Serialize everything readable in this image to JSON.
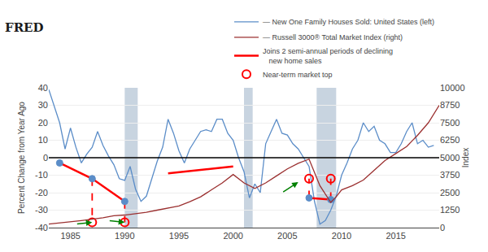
{
  "chart_data": {
    "type": "line",
    "annotations": [
      "FRED"
    ],
    "xlabel": null,
    "ylabel": "Percent Change from Year Ago",
    "y2label": "Index",
    "xlim": [
      1983.0,
      2019.0
    ],
    "xticks": [
      1985,
      1990,
      1995,
      2000,
      2005,
      2010,
      2015
    ],
    "ylim": [
      -40,
      40
    ],
    "yticks": [
      -40,
      -30,
      -20,
      -10,
      0,
      10,
      20,
      30,
      40
    ],
    "y2lim": [
      0,
      10000
    ],
    "y2ticks": [
      0,
      1250,
      2500,
      3750,
      5000,
      6250,
      7500,
      8750,
      10000
    ],
    "grid": "y",
    "legend": "upper right",
    "shaded_regions": [
      [
        1990.0,
        1991.2
      ],
      [
        2001.0,
        2001.8
      ],
      [
        2007.7,
        2009.5
      ]
    ],
    "shaded_color": "#c8d4e0",
    "hlines": [
      {
        "value": 0,
        "color": "#000000"
      }
    ],
    "arrows": [
      {
        "x_start": 1985.5,
        "y_start": -38,
        "x_end": 1987.0,
        "y_end": -37,
        "color": "green"
      },
      {
        "x_start": 1988.5,
        "y_start": -36,
        "x_end": 1990.0,
        "y_end": -37,
        "color": "green"
      },
      {
        "x_start": 2004.5,
        "y_start": -20,
        "x_end": 2006.0,
        "y_end": -14,
        "color": "green"
      }
    ],
    "series": [
      {
        "name": "— New One Family Houses Sold: United States (left)",
        "type": "line",
        "color": "#5b8dc8",
        "line_style": "solid",
        "x": [
          1983.0,
          1983.5,
          1984.0,
          1984.5,
          1985.0,
          1985.5,
          1986.0,
          1986.5,
          1987.0,
          1987.5,
          1988.0,
          1988.5,
          1989.0,
          1989.5,
          1990.0,
          1990.5,
          1991.0,
          1991.5,
          1992.0,
          1992.5,
          1993.0,
          1993.5,
          1994.0,
          1994.5,
          1995.0,
          1995.5,
          1996.0,
          1996.5,
          1997.0,
          1997.5,
          1998.0,
          1998.5,
          1999.0,
          1999.5,
          2000.0,
          2000.5,
          2001.0,
          2001.5,
          2002.0,
          2002.5,
          2003.0,
          2003.5,
          2004.0,
          2004.5,
          2005.0,
          2005.5,
          2006.0,
          2006.5,
          2007.0,
          2007.5,
          2008.0,
          2008.5,
          2009.0,
          2009.5,
          2010.0,
          2010.5,
          2011.0,
          2011.5,
          2012.0,
          2012.5,
          2013.0,
          2013.5,
          2014.0,
          2014.5,
          2015.0,
          2015.5,
          2016.0,
          2016.5,
          2017.0,
          2017.5,
          2018.0,
          2018.5
        ],
        "values": [
          39,
          30,
          20,
          5,
          17,
          6,
          -3,
          2,
          6,
          15,
          7,
          1,
          -4,
          -12,
          -13,
          -5,
          -18,
          -25,
          -22,
          -12,
          -2,
          6,
          22,
          14,
          4,
          -3,
          5,
          10,
          15,
          16,
          15,
          22,
          22,
          14,
          10,
          0,
          -8,
          -23,
          -15,
          -20,
          8,
          15,
          22,
          14,
          13,
          8,
          5,
          0,
          -5,
          -25,
          -38,
          -36,
          -30,
          -22,
          -10,
          -3,
          5,
          10,
          20,
          15,
          18,
          10,
          8,
          3,
          3,
          8,
          15,
          20,
          8,
          10,
          6,
          7
        ]
      },
      {
        "name": "— Russell 3000® Total Market Index (right)",
        "type": "line",
        "color": "#9b3030",
        "line_style": "solid",
        "axis": "y2",
        "x": [
          1983,
          1984,
          1985,
          1986,
          1987,
          1988,
          1989,
          1990,
          1991,
          1992,
          1993,
          1994,
          1995,
          1996,
          1997,
          1998,
          1999,
          2000,
          2001,
          2002,
          2003,
          2004,
          2005,
          2006,
          2007,
          2008,
          2009,
          2009.5,
          2010,
          2011,
          2012,
          2013,
          2014,
          2015,
          2016,
          2017,
          2018,
          2019
        ],
        "values": [
          250,
          320,
          400,
          500,
          600,
          700,
          850,
          900,
          1000,
          1100,
          1250,
          1400,
          1550,
          1850,
          2200,
          2700,
          3200,
          3800,
          3200,
          2800,
          3200,
          3700,
          4200,
          4600,
          4900,
          3000,
          1800,
          2200,
          2700,
          3000,
          3400,
          4100,
          4800,
          5300,
          5800,
          6600,
          7500,
          8750
        ]
      },
      {
        "name": "Joins 2 semi-annual periods of declining\n   new home sales",
        "type": "line",
        "color": "red",
        "line_style": "solid",
        "x": [
          1984.0,
          1987.0,
          1990.0
        ],
        "values": [
          -3,
          -12,
          -25
        ]
      },
      {
        "type": "line",
        "color": "red",
        "line_style": "solid",
        "x": [
          1994.0,
          2000.0
        ],
        "values": [
          -9,
          -5
        ]
      },
      {
        "type": "line",
        "color": "red",
        "line_style": "solid",
        "x": [
          2007.0,
          2009.0
        ],
        "values": [
          -23,
          -24
        ]
      },
      {
        "type": "line",
        "color": "red",
        "line_style": "dashed",
        "x": [
          1987.0,
          1987.0
        ],
        "values": [
          -12,
          -37
        ]
      },
      {
        "type": "line",
        "color": "red",
        "line_style": "dashed",
        "x": [
          1990.0,
          1990.0
        ],
        "values": [
          -25,
          -37
        ]
      },
      {
        "type": "line",
        "color": "red",
        "line_style": "dashed",
        "x": [
          2007.0,
          2007.0
        ],
        "values": [
          -23,
          -12
        ]
      },
      {
        "type": "line",
        "color": "red",
        "line_style": "dashed",
        "x": [
          2009.0,
          2009.0
        ],
        "values": [
          -24,
          -12
        ]
      },
      {
        "type": "scatter",
        "color": "#5b8dc8",
        "marker": "circle",
        "x": [
          1984.0,
          1987.0,
          1990.0,
          2007.0,
          2009.0
        ],
        "values": [
          -3,
          -12,
          -25,
          -23,
          -24
        ]
      },
      {
        "name": "Near-term market top",
        "type": "scatter",
        "color": "red",
        "marker": "circle-open",
        "x": [
          1987.0,
          1990.0,
          2007.0,
          2009.0
        ],
        "values": [
          -37,
          -37,
          -12,
          -12
        ]
      }
    ]
  }
}
